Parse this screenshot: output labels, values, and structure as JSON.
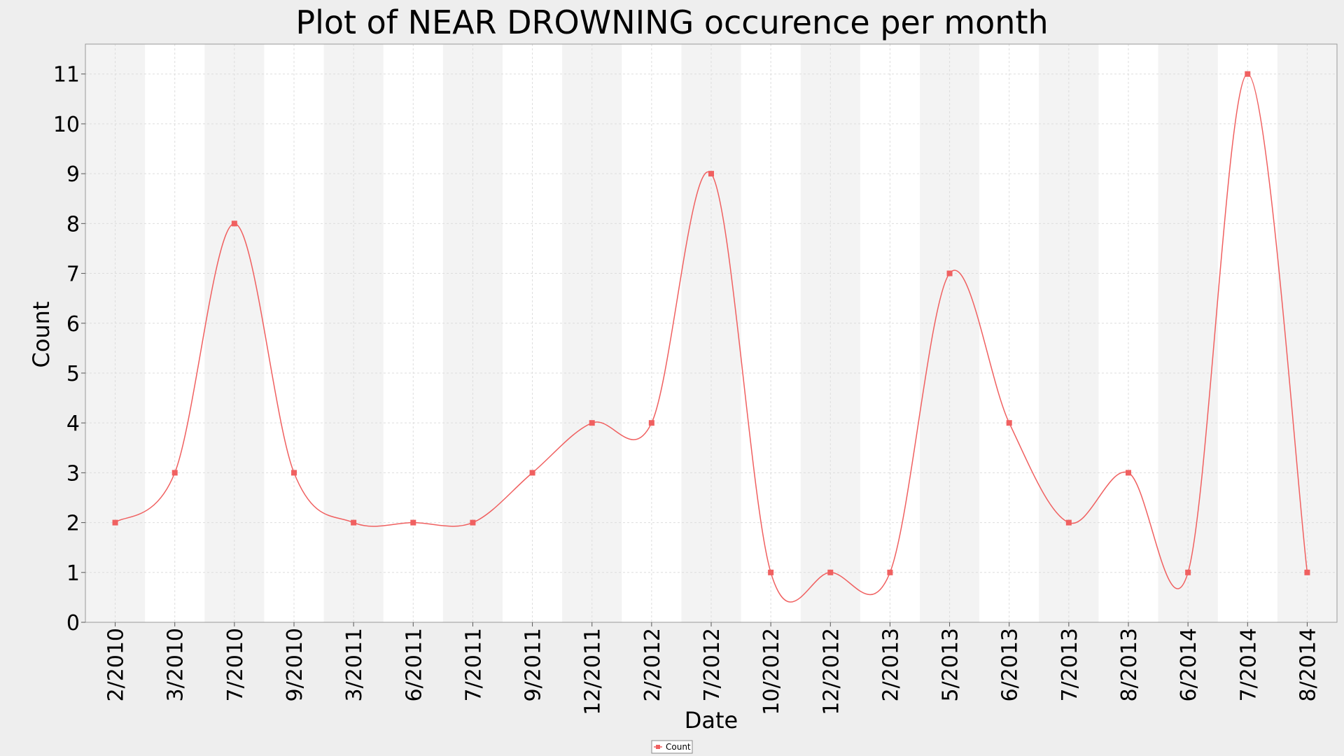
{
  "chart_data": {
    "type": "line",
    "title": "Plot of NEAR DROWNING occurence per month",
    "xlabel": "Date",
    "ylabel": "Count",
    "categories": [
      "2/2010",
      "3/2010",
      "7/2010",
      "9/2010",
      "3/2011",
      "6/2011",
      "7/2011",
      "9/2011",
      "12/2011",
      "2/2012",
      "7/2012",
      "10/2012",
      "12/2012",
      "2/2013",
      "5/2013",
      "6/2013",
      "7/2013",
      "8/2013",
      "6/2014",
      "7/2014",
      "8/2014"
    ],
    "series": [
      {
        "name": "Count",
        "values": [
          2,
          3,
          8,
          3,
          2,
          2,
          2,
          3,
          4,
          4,
          9,
          1,
          1,
          1,
          7,
          4,
          2,
          3,
          1,
          11,
          1
        ],
        "color": "#f06060"
      }
    ],
    "ylim": [
      0,
      11.6
    ],
    "yticks": [
      0,
      1,
      2,
      3,
      4,
      5,
      6,
      7,
      8,
      9,
      10,
      11
    ],
    "grid": true,
    "smoothed": true,
    "legend_position": "bottom-center",
    "colors": {
      "background": "#eeeeee",
      "band_light": "#ffffff",
      "band_dark": "#f3f3f3",
      "grid": "#dddddd",
      "line": "#f06060"
    }
  }
}
